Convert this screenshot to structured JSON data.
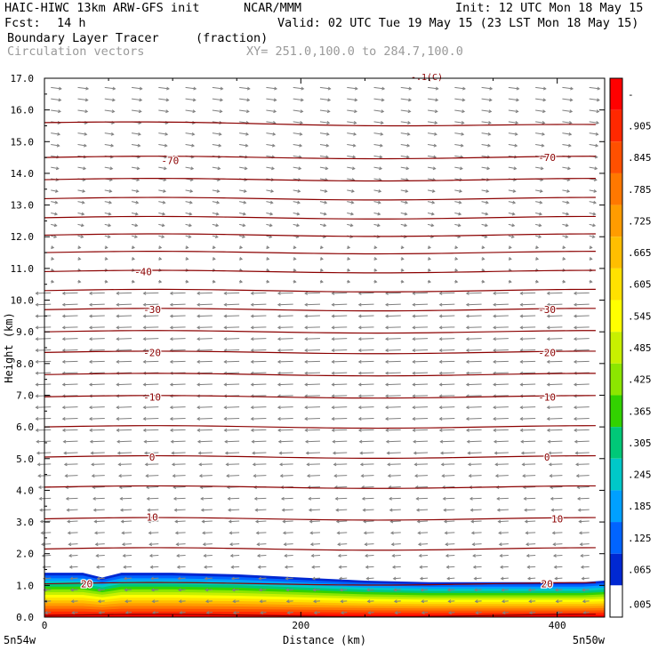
{
  "header": {
    "model": "HAIC-HIWC 13km ARW-GFS init",
    "org": "NCAR/MMM",
    "init": "Init: 12 UTC Mon 18 May 15",
    "fcst_label": "Fcst:",
    "fcst_value": "14 h",
    "valid": "Valid: 02 UTC Tue 19 May 15 (23 LST Mon 18 May 15)",
    "field": "Boundary Layer Tracer",
    "units": "(fraction)",
    "vectors": "Circulation vectors",
    "xy": "XY= 251.0,100.0 to 284.7,100.0"
  },
  "colors": {
    "contour": "#8b0000",
    "vector": "#808080",
    "frame": "#000000"
  },
  "chart_data": {
    "type": "heatmap",
    "xlabel": "Distance (km)",
    "ylabel": "Height (km)",
    "xlim": [
      0,
      437
    ],
    "ylim": [
      0,
      17
    ],
    "x_ticks": [
      0,
      200,
      400
    ],
    "y_ticks": [
      0,
      1,
      2,
      3,
      4,
      5,
      6,
      7,
      8,
      9,
      10,
      11,
      12,
      13,
      14,
      15,
      16,
      17
    ],
    "y_tick_labels": [
      "0.0",
      "1.0",
      "2.0",
      "3.0",
      "4.0",
      "5.0",
      "6.0",
      "7.0",
      "8.0",
      "9.0",
      "10.0",
      "11.0",
      "12.0",
      "13.0",
      "14.0",
      "15.0",
      "16.0",
      "17.0"
    ],
    "x_end_labels": {
      "left": "5n54w",
      "right": "5n50w"
    },
    "top_label": "-.1(C)",
    "colorbar": {
      "labels": [
        "-",
        ".905",
        ".845",
        ".785",
        ".725",
        ".665",
        ".605",
        ".545",
        ".485",
        ".425",
        ".365",
        ".305",
        ".245",
        ".185",
        ".125",
        ".065",
        ".005"
      ],
      "colors": [
        "#ff0000",
        "#ff2800",
        "#ff5000",
        "#ff7800",
        "#ff9c00",
        "#ffbe00",
        "#ffe100",
        "#ffff00",
        "#c8f000",
        "#8ce600",
        "#32d200",
        "#00c878",
        "#00c8c8",
        "#00a0ff",
        "#0064ff",
        "#0028d2",
        "#ffffff"
      ]
    },
    "temperature_contours": {
      "levels": [
        20,
        10,
        0,
        -10,
        -20,
        -30,
        -40,
        -70
      ],
      "labels": [
        {
          "text": "20",
          "x": 33,
          "y": 1.05
        },
        {
          "text": "20",
          "x": 392,
          "y": 1.05
        },
        {
          "text": "10",
          "x": 84,
          "y": 3.15
        },
        {
          "text": "10",
          "x": 400,
          "y": 3.1
        },
        {
          "text": "0",
          "x": 84,
          "y": 5.05
        },
        {
          "text": "0",
          "x": 392,
          "y": 5.05
        },
        {
          "text": "-10",
          "x": 84,
          "y": 6.95
        },
        {
          "text": "-10",
          "x": 392,
          "y": 6.95
        },
        {
          "text": "-20",
          "x": 84,
          "y": 8.35
        },
        {
          "text": "-20",
          "x": 392,
          "y": 8.35
        },
        {
          "text": "-30",
          "x": 84,
          "y": 9.7
        },
        {
          "text": "-30",
          "x": 392,
          "y": 9.7
        },
        {
          "text": "-40",
          "x": 77,
          "y": 10.9
        },
        {
          "text": "-70",
          "x": 98,
          "y": 14.4
        },
        {
          "text": "-70",
          "x": 392,
          "y": 14.5
        }
      ],
      "line_heights": [
        0.05,
        1.05,
        2.15,
        3.1,
        4.1,
        5.05,
        6.0,
        6.95,
        7.65,
        8.35,
        9.0,
        9.7,
        10.3,
        10.9,
        11.5,
        12.05,
        12.6,
        13.2,
        13.8,
        14.5,
        15.6
      ]
    },
    "tracer_top_height": [
      1.4,
      1.4,
      1.25,
      1.4,
      1.4,
      1.35,
      1.25,
      1.15,
      1.1,
      1.1,
      1.1,
      1.1,
      1.15
    ],
    "tracer_x": [
      0,
      30,
      45,
      60,
      100,
      150,
      200,
      250,
      300,
      340,
      380,
      420,
      437
    ]
  }
}
